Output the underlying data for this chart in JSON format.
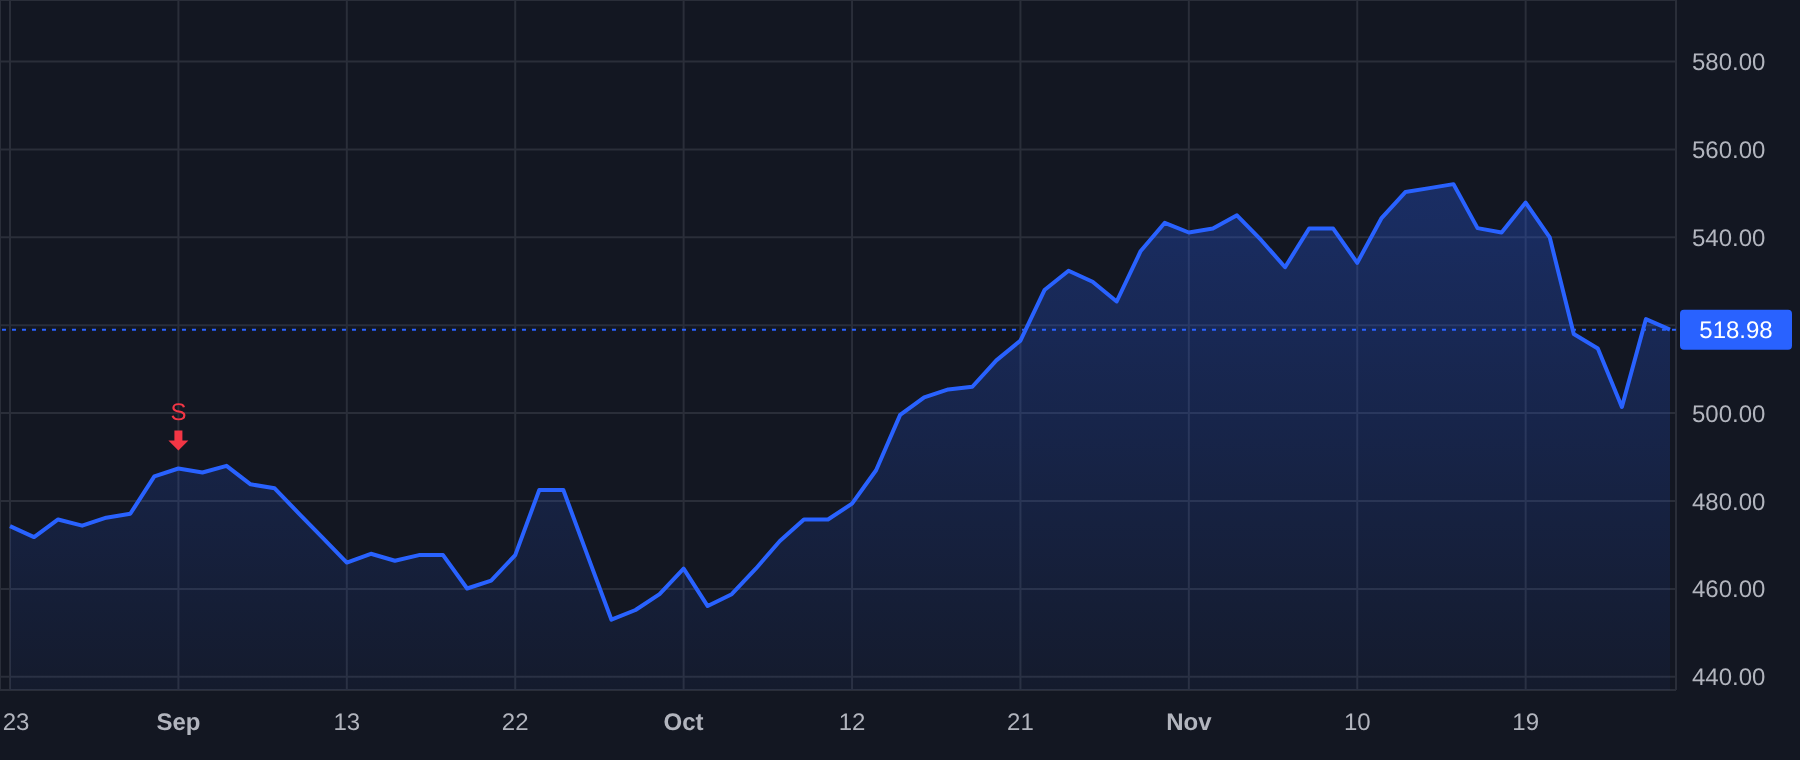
{
  "chart_data": {
    "type": "area",
    "categories": [
      "23",
      null,
      null,
      null,
      null,
      null,
      null,
      "Sep",
      null,
      null,
      null,
      null,
      null,
      null,
      "13",
      null,
      null,
      null,
      null,
      null,
      null,
      "22",
      null,
      null,
      null,
      null,
      null,
      null,
      "Oct",
      null,
      null,
      null,
      null,
      null,
      null,
      "12",
      null,
      null,
      null,
      null,
      null,
      null,
      "21",
      null,
      null,
      null,
      null,
      null,
      null,
      "Nov",
      null,
      null,
      null,
      null,
      null,
      null,
      "10",
      null,
      null,
      null,
      null,
      null,
      null,
      "19",
      null,
      null,
      null,
      null,
      null,
      null
    ],
    "series": [
      {
        "color": "#2962ff",
        "values": [
          474.3,
          471.8,
          475.8,
          474.4,
          476.2,
          477.1,
          485.6,
          487.4,
          486.5,
          488,
          483.8,
          482.9,
          477.2,
          471.6,
          466,
          468,
          466.4,
          467.7,
          467.7,
          460.1,
          461.9,
          467.7,
          482.5,
          482.5,
          467.7,
          453,
          455.2,
          458.8,
          464.6,
          456.1,
          458.8,
          464.6,
          470.9,
          475.8,
          475.8,
          479.4,
          487,
          499.6,
          503.6,
          505.4,
          506,
          512,
          516.5,
          528,
          532.4,
          529.9,
          525.4,
          536.9,
          543.3,
          541.1,
          542,
          545,
          539.4,
          533.2,
          542,
          542,
          534.2,
          544.3,
          550.3,
          551.2,
          552.1,
          542.1,
          541.1,
          547.9,
          540,
          518,
          514.7,
          501.4,
          521.4,
          519
        ]
      }
    ],
    "ylim": [
      437,
      594
    ],
    "yticks": [
      {
        "value": 440,
        "label": "440.00"
      },
      {
        "value": 460,
        "label": "460.00"
      },
      {
        "value": 480,
        "label": "480.00"
      },
      {
        "value": 500,
        "label": "500.00"
      },
      {
        "value": 520,
        "label": null
      },
      {
        "value": 540,
        "label": "540.00"
      },
      {
        "value": 560,
        "label": "560.00"
      },
      {
        "value": 580,
        "label": "580.00"
      }
    ],
    "ref_lines": [
      {
        "axis": "y",
        "value": 518.98,
        "label": "518.98",
        "color": "#2962ff",
        "line_style": "dotted"
      }
    ],
    "annotations": [
      {
        "text": "S",
        "x": "Sep",
        "y": 487.4
      }
    ],
    "grid": true,
    "marker": "none",
    "line_style": "solid"
  }
}
